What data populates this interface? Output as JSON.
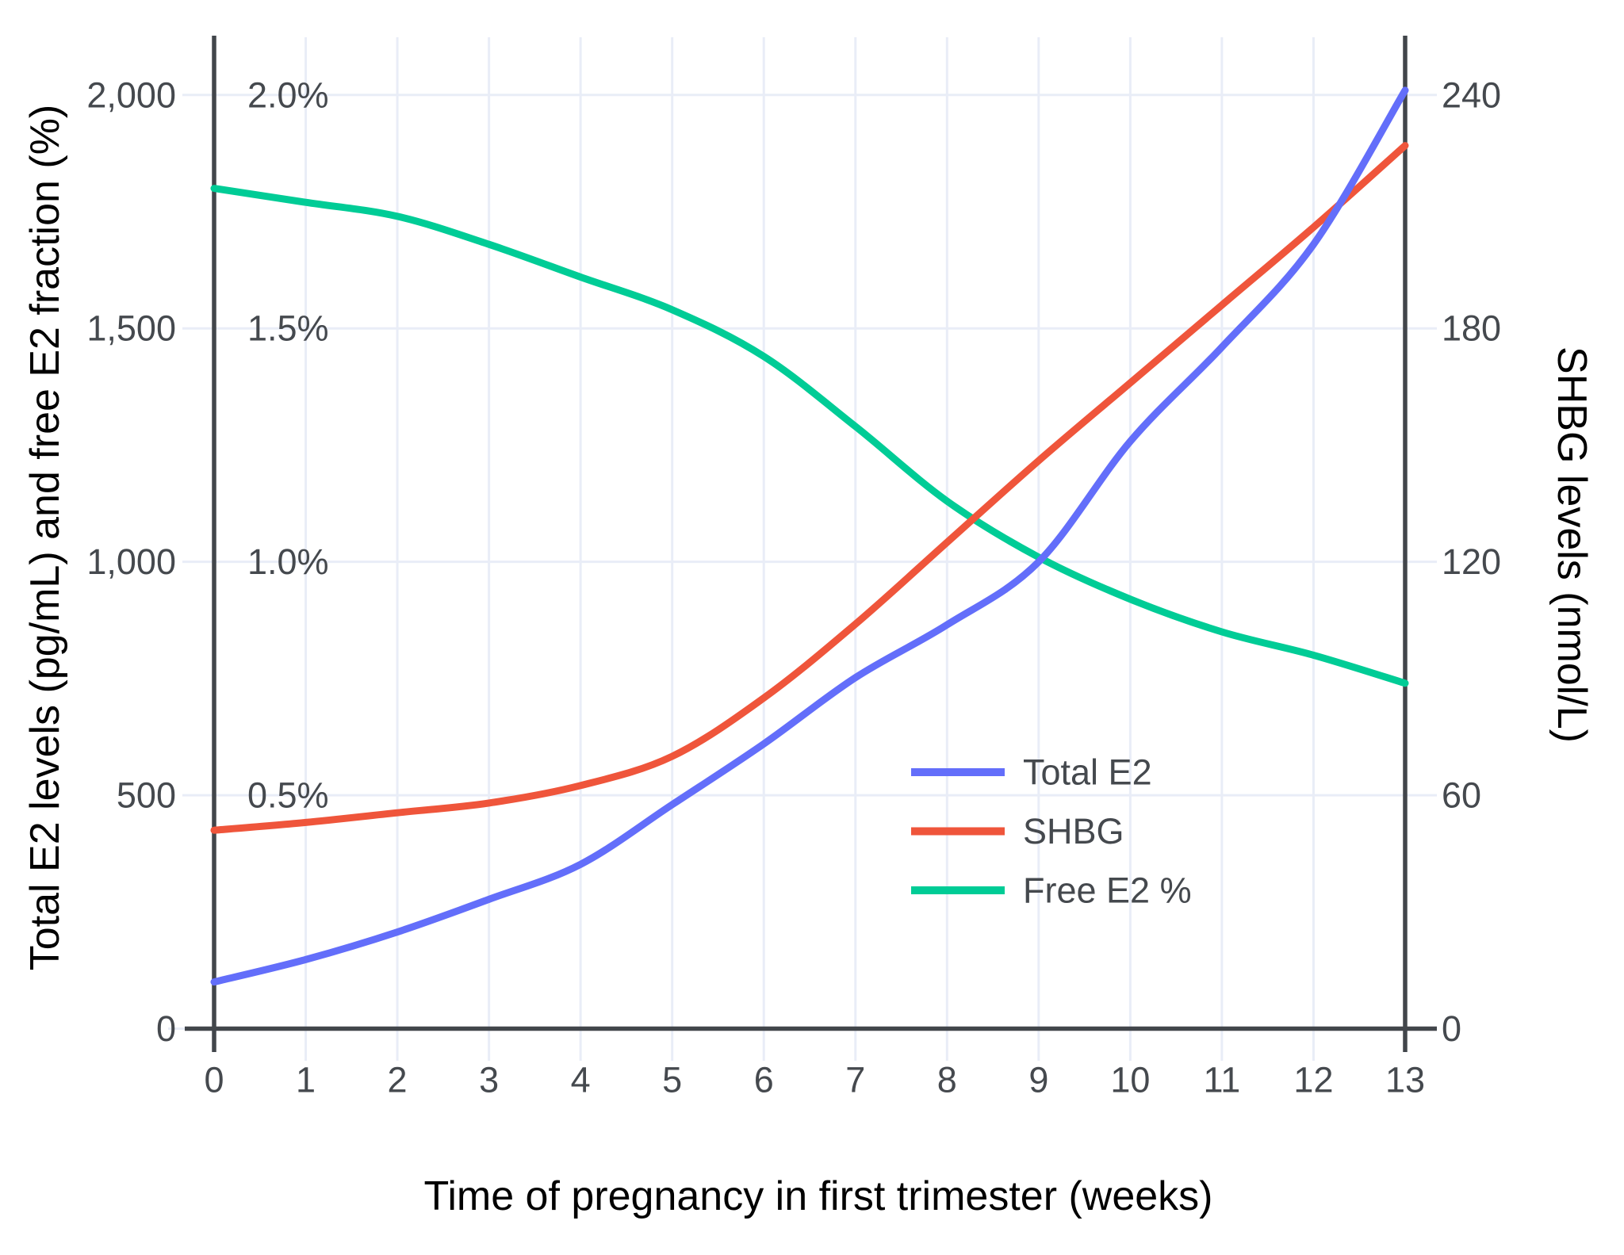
{
  "figure": {
    "background": "#ffffff",
    "axis_color": "#42464b",
    "grid_color": "#e9edf7",
    "text_color": "#45494e",
    "x_axis": {
      "title": "Time of pregnancy in first trimester (weeks)",
      "tick_labels": [
        "0",
        "1",
        "2",
        "3",
        "4",
        "5",
        "6",
        "7",
        "8",
        "9",
        "10",
        "11",
        "12",
        "13"
      ],
      "tick_values": [
        0,
        1,
        2,
        3,
        4,
        5,
        6,
        7,
        8,
        9,
        10,
        11,
        12,
        13
      ]
    },
    "y_axis_left": {
      "title": "Total E2 levels (pg/mL) and free E2 fraction (%)",
      "tick_labels": [
        "0",
        "500",
        "1,000",
        "1,500",
        "2,000"
      ],
      "tick_values": [
        0,
        500,
        1000,
        1500,
        2000
      ],
      "pct_labels": [
        {
          "label": "0.5%",
          "value": 500
        },
        {
          "label": "1.0%",
          "value": 1000
        },
        {
          "label": "1.5%",
          "value": 1500
        },
        {
          "label": "2.0%",
          "value": 2000
        }
      ],
      "range": [
        0,
        2000
      ]
    },
    "y_axis_right": {
      "title": "SHBG levels (nmol/L)",
      "tick_labels": [
        "0",
        "60",
        "120",
        "180",
        "240"
      ],
      "tick_values": [
        0,
        60,
        120,
        180,
        240
      ],
      "range": [
        0,
        240
      ]
    },
    "legend": {
      "items": [
        {
          "label": "Total E2",
          "color": "#636EFA"
        },
        {
          "label": "SHBG",
          "color": "#EF553B"
        },
        {
          "label": "Free E2 %",
          "color": "#00CC96"
        }
      ]
    }
  },
  "chart_data": {
    "type": "line",
    "title": "",
    "xlabel": "Time of pregnancy in first trimester (weeks)",
    "ylabel_left": "Total E2 levels (pg/mL) and free E2 fraction (%)",
    "ylabel_right": "SHBG levels (nmol/L)",
    "x": [
      0,
      1,
      2,
      3,
      4,
      5,
      6,
      7,
      8,
      9,
      10,
      11,
      12,
      13
    ],
    "xlim": [
      0,
      13
    ],
    "ylim_left": [
      0,
      2000
    ],
    "ylim_right": [
      0,
      240
    ],
    "grid": true,
    "legend_position": "inside lower-right",
    "series": [
      {
        "name": "Total E2",
        "axis": "left",
        "unit": "pg/mL",
        "color": "#636EFA",
        "values": [
          100,
          148,
          207,
          277,
          352,
          480,
          610,
          752,
          865,
          1000,
          1258,
          1460,
          1680,
          2010
        ]
      },
      {
        "name": "SHBG",
        "axis": "right",
        "unit": "nmol/L",
        "color": "#EF553B",
        "values": [
          51,
          53,
          55.5,
          58,
          62.5,
          70,
          85,
          104,
          125,
          146,
          166,
          186,
          206,
          227
        ]
      },
      {
        "name": "Free E2 %",
        "axis": "left_percent",
        "unit": "%",
        "color": "#00CC96",
        "values": [
          1.8,
          1.77,
          1.74,
          1.68,
          1.61,
          1.54,
          1.44,
          1.29,
          1.13,
          1.01,
          0.92,
          0.85,
          0.8,
          0.74
        ]
      }
    ]
  }
}
